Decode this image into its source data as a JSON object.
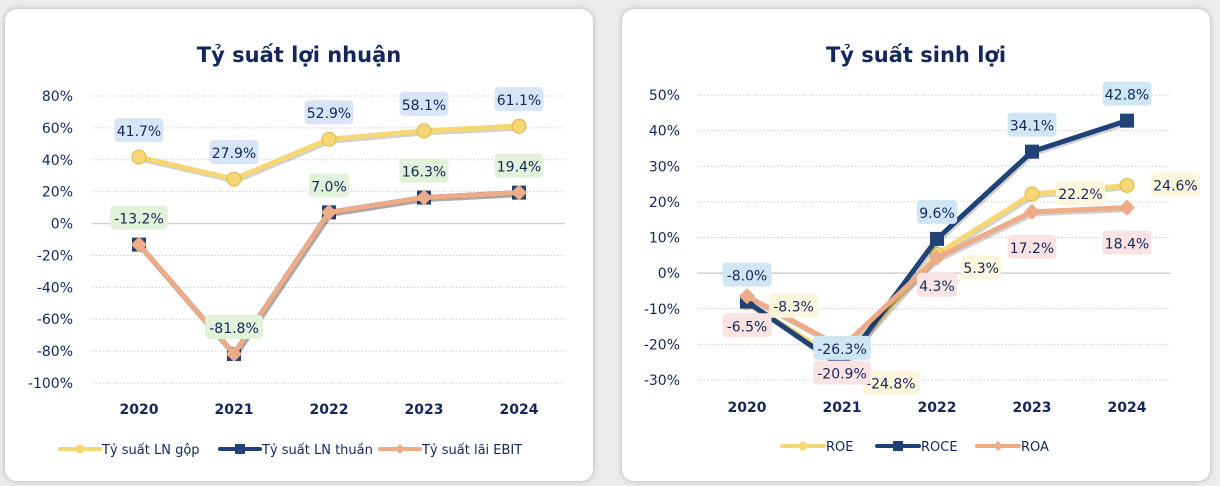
{
  "chart_data": [
    {
      "type": "line",
      "title": "Tỷ suất lợi nhuận",
      "categories": [
        "2020",
        "2021",
        "2022",
        "2023",
        "2024"
      ],
      "xlabel": "",
      "ylabel": "",
      "ylim": [
        -100,
        80
      ],
      "ytick_step": 20,
      "yticks": [
        "80%",
        "60%",
        "40%",
        "20%",
        "0%",
        "-20%",
        "-40%",
        "-60%",
        "-80%",
        "-100%"
      ],
      "grid": true,
      "legend_position": "bottom",
      "series": [
        {
          "name": "Tỷ suất LN gộp",
          "values": [
            41.7,
            27.9,
            52.9,
            58.1,
            61.1
          ],
          "color": "#f7d774",
          "marker": "circle",
          "labels": [
            "41.7%",
            "27.9%",
            "52.9%",
            "58.1%",
            "61.1%"
          ],
          "label_bg": "#d6e6f8",
          "label_pos": "above"
        },
        {
          "name": "Tỷ suất LN thuần",
          "values": [
            -13.2,
            -81.8,
            7.0,
            16.3,
            19.4
          ],
          "color": "#1f4277",
          "marker": "square",
          "labels": [
            "-13.2%",
            "-81.8%",
            "7.0%",
            "16.3%",
            "19.4%"
          ],
          "label_bg": "#e2f1d9",
          "label_pos": "above"
        },
        {
          "name": "Tỷ suất lãi EBIT",
          "values": [
            -13.2,
            -81.8,
            7.0,
            16.3,
            19.4
          ],
          "color": "#eeab87",
          "marker": "diamond",
          "labels": [],
          "label_bg": "#fff5dc",
          "label_pos": "none"
        }
      ]
    },
    {
      "type": "line",
      "title": "Tỷ suất sinh lợi",
      "categories": [
        "2020",
        "2021",
        "2022",
        "2023",
        "2024"
      ],
      "xlabel": "",
      "ylabel": "",
      "ylim": [
        -30,
        50
      ],
      "ytick_step": 10,
      "yticks": [
        "50%",
        "40%",
        "30%",
        "20%",
        "10%",
        "0%",
        "-10%",
        "-20%",
        "-30%"
      ],
      "grid": true,
      "legend_position": "bottom",
      "series": [
        {
          "name": "ROE",
          "values": [
            -8.3,
            -24.8,
            5.3,
            22.2,
            24.6
          ],
          "color": "#f7d774",
          "marker": "circle",
          "labels": [
            "-8.3%",
            "-24.8%",
            "5.3%",
            "22.2%",
            "24.6%"
          ],
          "label_bg": "#fdf6dd",
          "label_pos": "right"
        },
        {
          "name": "ROCE",
          "values": [
            -8.0,
            -26.3,
            9.6,
            34.1,
            42.8
          ],
          "color": "#1f4277",
          "marker": "square",
          "labels": [
            "-8.0%",
            "-26.3%",
            "9.6%",
            "34.1%",
            "42.8%"
          ],
          "label_bg": "#cfe7f5",
          "label_pos": "above"
        },
        {
          "name": "ROA",
          "values": [
            -6.5,
            -20.9,
            4.3,
            17.2,
            18.4
          ],
          "color": "#eeab87",
          "marker": "diamond",
          "labels": [
            "-6.5%",
            "-20.9%",
            "4.3%",
            "17.2%",
            "18.4%"
          ],
          "label_bg": "#f9e3e3",
          "label_pos": "below"
        }
      ]
    }
  ]
}
